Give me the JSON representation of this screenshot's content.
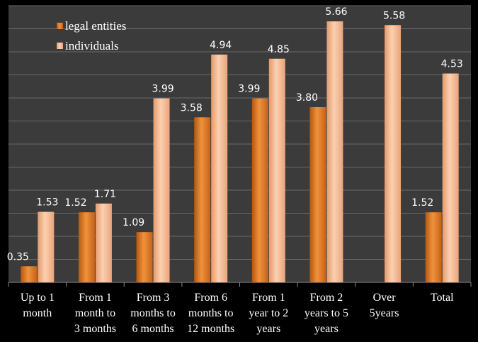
{
  "chart_data": {
    "type": "bar",
    "categories": [
      [
        "Up to 1",
        "month"
      ],
      [
        "From 1",
        "month to",
        "3 months"
      ],
      [
        "From 3",
        "months to",
        "6 months"
      ],
      [
        "From 6",
        "months to",
        "12 months"
      ],
      [
        "From 1",
        "year to 2",
        "years"
      ],
      [
        "From 2",
        "years to 5",
        "years"
      ],
      [
        "Over",
        "5years"
      ],
      [
        "Total"
      ]
    ],
    "series": [
      {
        "name": "legal entities",
        "values": [
          0.35,
          1.52,
          1.09,
          3.58,
          3.99,
          3.8,
          null,
          1.52
        ],
        "labels": [
          "0.35",
          "1.52",
          "1.09",
          "3.58",
          "3.99",
          "3.80",
          null,
          "1.52"
        ]
      },
      {
        "name": "individuals",
        "values": [
          1.53,
          1.71,
          3.99,
          4.94,
          4.85,
          5.66,
          5.58,
          4.53
        ],
        "labels": [
          "1.53",
          "1.71",
          "3.99",
          "4.94",
          "4.85",
          "5.66",
          "5.58",
          "4.53"
        ]
      }
    ],
    "ylim": [
      0,
      6
    ],
    "grid": true,
    "legend_position": "top-left",
    "colors": {
      "background": "#000000",
      "plot_area": "#3b3b3b",
      "gridline": "#6a6a6a",
      "legal_entities": "#d9731c",
      "individuals": "#f3b387"
    }
  }
}
